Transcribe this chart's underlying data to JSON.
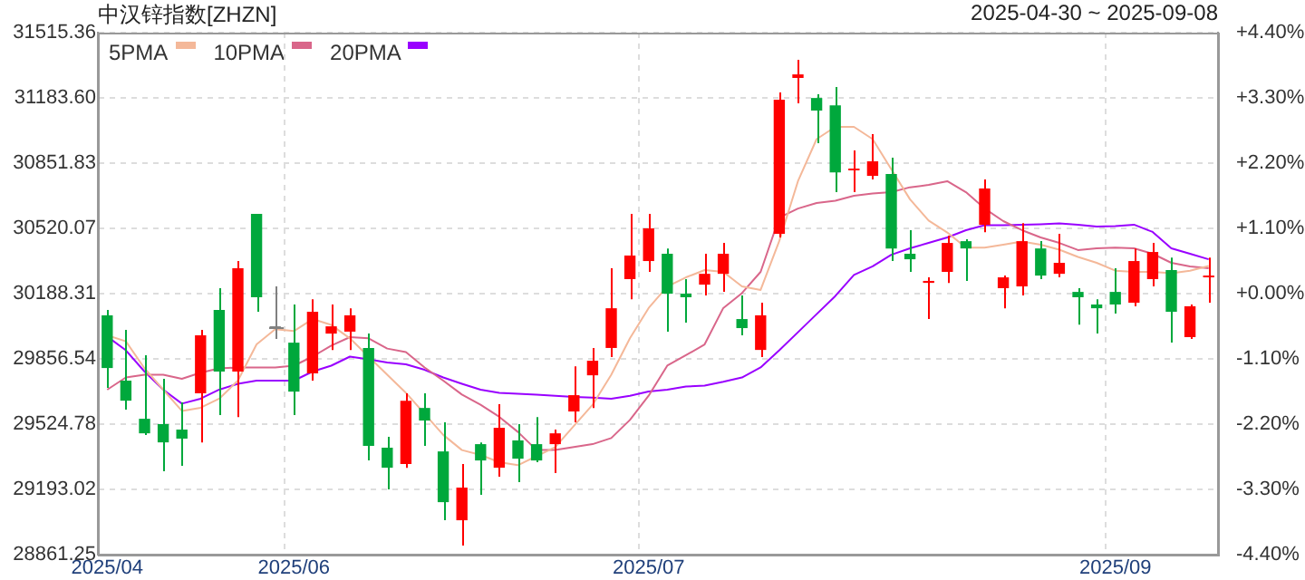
{
  "chart_data": {
    "type": "candlestick",
    "title": "中汉锌指数[ZHZN]",
    "annotations": [
      "2025-04-30 ~ 2025-09-08"
    ],
    "categories": [
      "2025/04",
      null,
      null,
      null,
      null,
      null,
      null,
      null,
      null,
      null,
      "2025/06",
      null,
      null,
      null,
      null,
      null,
      null,
      null,
      null,
      null,
      null,
      null,
      null,
      null,
      null,
      null,
      null,
      null,
      null,
      "2025/07",
      null,
      null,
      null,
      null,
      null,
      null,
      null,
      null,
      null,
      null,
      null,
      null,
      null,
      null,
      null,
      null,
      null,
      null,
      null,
      null,
      null,
      null,
      null,
      null,
      "2025/09",
      null,
      null,
      null,
      null,
      null
    ],
    "ohlc": [
      [
        30078,
        30105,
        29709,
        29810
      ],
      [
        29746,
        30004,
        29598,
        29644
      ],
      [
        29552,
        29875,
        29469,
        29478
      ],
      [
        29525,
        29755,
        29285,
        29432
      ],
      [
        29497,
        29635,
        29313,
        29451
      ],
      [
        29681,
        30004,
        29432,
        29976
      ],
      [
        30105,
        30216,
        29571,
        29792
      ],
      [
        29792,
        30354,
        29561,
        30317
      ],
      [
        30594,
        30594,
        30096,
        30170
      ],
      [
        30013,
        30225,
        29958,
        30013
      ],
      [
        29939,
        30133,
        29571,
        29690
      ],
      [
        29783,
        30160,
        29746,
        30096
      ],
      [
        29985,
        30133,
        29902,
        30022
      ],
      [
        29995,
        30114,
        29902,
        30078
      ],
      [
        29912,
        29985,
        29340,
        29414
      ],
      [
        29405,
        29460,
        29193,
        29303
      ],
      [
        29322,
        29681,
        29303,
        29644
      ],
      [
        29607,
        29681,
        29414,
        29543
      ],
      [
        29386,
        29534,
        29036,
        29128
      ],
      [
        29036,
        29322,
        28907,
        29202
      ],
      [
        29423,
        29432,
        29165,
        29340
      ],
      [
        29303,
        29626,
        29257,
        29506
      ],
      [
        29442,
        29525,
        29230,
        29349
      ],
      [
        29423,
        29561,
        29331,
        29340
      ],
      [
        29423,
        29497,
        29276,
        29478
      ],
      [
        29589,
        29819,
        29534,
        29672
      ],
      [
        29773,
        29912,
        29607,
        29847
      ],
      [
        29912,
        30317,
        29866,
        30114
      ],
      [
        30262,
        30594,
        30160,
        30382
      ],
      [
        30354,
        30594,
        30299,
        30520
      ],
      [
        30391,
        30418,
        29995,
        30188
      ],
      [
        30188,
        30262,
        30041,
        30170
      ],
      [
        30234,
        30391,
        30179,
        30289
      ],
      [
        30289,
        30446,
        30197,
        30391
      ],
      [
        30059,
        30179,
        29976,
        30013
      ],
      [
        29902,
        30142,
        29866,
        30078
      ],
      [
        30492,
        31211,
        30474,
        31174
      ],
      [
        31285,
        31377,
        31156,
        31303
      ],
      [
        31183,
        31202,
        30953,
        31119
      ],
      [
        31146,
        31239,
        30704,
        30805
      ],
      [
        30815,
        30916,
        30704,
        30824
      ],
      [
        30787,
        30999,
        30769,
        30861
      ],
      [
        30796,
        30879,
        30354,
        30418
      ],
      [
        30391,
        30511,
        30299,
        30363
      ],
      [
        30243,
        30271,
        30059,
        30253
      ],
      [
        30299,
        30483,
        30243,
        30446
      ],
      [
        30455,
        30465,
        30253,
        30418
      ],
      [
        30538,
        30769,
        30501,
        30723
      ],
      [
        30216,
        30280,
        30114,
        30271
      ],
      [
        30225,
        30547,
        30179,
        30455
      ],
      [
        30418,
        30455,
        30262,
        30280
      ],
      [
        30289,
        30492,
        30271,
        30345
      ],
      [
        30197,
        30216,
        30031,
        30170
      ],
      [
        30133,
        30160,
        29985,
        30114
      ],
      [
        30197,
        30317,
        30087,
        30133
      ],
      [
        30142,
        30418,
        30124,
        30354
      ],
      [
        30262,
        30446,
        30225,
        30400
      ],
      [
        30308,
        30372,
        29939,
        30096
      ],
      [
        29967,
        30133,
        29958,
        30124
      ],
      [
        30271,
        30372,
        30142,
        30280
      ]
    ],
    "colors": [
      "#00a83c",
      "#00a83c",
      "#00a83c",
      "#00a83c",
      "#00a83c",
      "#ff0000",
      "#00a83c",
      "#ff0000",
      "#00a83c",
      "#808080",
      "#00a83c",
      "#ff0000",
      "#ff0000",
      "#ff0000",
      "#00a83c",
      "#00a83c",
      "#ff0000",
      "#00a83c",
      "#00a83c",
      "#ff0000",
      "#00a83c",
      "#ff0000",
      "#00a83c",
      "#00a83c",
      "#ff0000",
      "#ff0000",
      "#ff0000",
      "#ff0000",
      "#ff0000",
      "#ff0000",
      "#00a83c",
      "#00a83c",
      "#ff0000",
      "#ff0000",
      "#00a83c",
      "#ff0000",
      "#ff0000",
      "#ff0000",
      "#00a83c",
      "#00a83c",
      "#ff0000",
      "#ff0000",
      "#00a83c",
      "#00a83c",
      "#ff0000",
      "#ff0000",
      "#00a83c",
      "#ff0000",
      "#ff0000",
      "#ff0000",
      "#00a83c",
      "#ff0000",
      "#00a83c",
      "#00a83c",
      "#00a83c",
      "#ff0000",
      "#ff0000",
      "#00a83c",
      "#ff0000",
      "#ff0000"
    ],
    "series": [
      {
        "name": "5PMA",
        "type": "line",
        "color": "#f4b899",
        "values": [
          29976,
          29946,
          29808,
          29700,
          29592,
          29608,
          29654,
          29746,
          29930,
          30007,
          29998,
          30059,
          30029,
          29961,
          29868,
          29776,
          29684,
          29577,
          29470,
          29393,
          29368,
          29331,
          29316,
          29362,
          29408,
          29516,
          29623,
          29776,
          29961,
          30115,
          30225,
          30271,
          30308,
          30299,
          30225,
          30207,
          30456,
          30760,
          30974,
          31036,
          31036,
          30974,
          30821,
          30668,
          30560,
          30499,
          30422,
          30422,
          30437,
          30453,
          30437,
          30412,
          30375,
          30345,
          30305,
          30299,
          30299,
          30292,
          30305,
          30329
        ]
      },
      {
        "name": "10PMA",
        "type": "line",
        "color": "#d9668a",
        "values": [
          29700,
          29762,
          29776,
          29776,
          29755,
          29786,
          29808,
          29813,
          29813,
          29813,
          29822,
          29868,
          29924,
          29967,
          29961,
          29909,
          29891,
          29813,
          29746,
          29675,
          29623,
          29562,
          29485,
          29393,
          29393,
          29408,
          29423,
          29454,
          29546,
          29669,
          29822,
          29875,
          29930,
          30115,
          30191,
          30299,
          30575,
          30621,
          30649,
          30661,
          30686,
          30698,
          30704,
          30729,
          30741,
          30760,
          30704,
          30621,
          30557,
          30511,
          30474,
          30446,
          30410,
          30419,
          30422,
          30419,
          30391,
          30345,
          30327,
          30317
        ]
      },
      {
        "name": "20PMA",
        "type": "line",
        "color": "#9900ff",
        "values": [
          29970,
          29900,
          29792,
          29700,
          29629,
          29654,
          29700,
          29730,
          29746,
          29746,
          29746,
          29792,
          29822,
          29868,
          29854,
          29838,
          29829,
          29801,
          29762,
          29730,
          29700,
          29684,
          29679,
          29675,
          29669,
          29663,
          29660,
          29654,
          29669,
          29691,
          29700,
          29716,
          29721,
          29740,
          29762,
          29813,
          29900,
          29992,
          30084,
          30176,
          30283,
          30327,
          30386,
          30419,
          30446,
          30474,
          30511,
          30536,
          30536,
          30539,
          30541,
          30545,
          30539,
          30529,
          30532,
          30539,
          30502,
          30419,
          30391,
          30363
        ]
      }
    ],
    "ylim": [
      28861.25,
      31515.36
    ],
    "yticks": [
      28861.25,
      29193.02,
      29524.78,
      29856.54,
      30188.31,
      30520.07,
      30851.83,
      {
        "value": 31183.6,
        "label": "31183.60"
      },
      31515.36
    ],
    "y2lim": [
      -4.4,
      4.4
    ],
    "y2ticks": [
      {
        "value": -4.4,
        "label": "-4.40%"
      },
      {
        "value": -3.3,
        "label": "-3.30%"
      },
      {
        "value": -2.2,
        "label": "-2.20%"
      },
      {
        "value": -1.1,
        "label": "-1.10%"
      },
      {
        "value": 0,
        "label": "+0.00%"
      },
      {
        "value": 1.1,
        "label": "+1.10%"
      },
      {
        "value": 2.2,
        "label": "+2.20%"
      },
      {
        "value": 3.3,
        "label": "+3.30%"
      },
      {
        "value": 4.4,
        "label": "+4.40%"
      }
    ],
    "grid": true,
    "legend": "top left",
    "marker": "none"
  }
}
